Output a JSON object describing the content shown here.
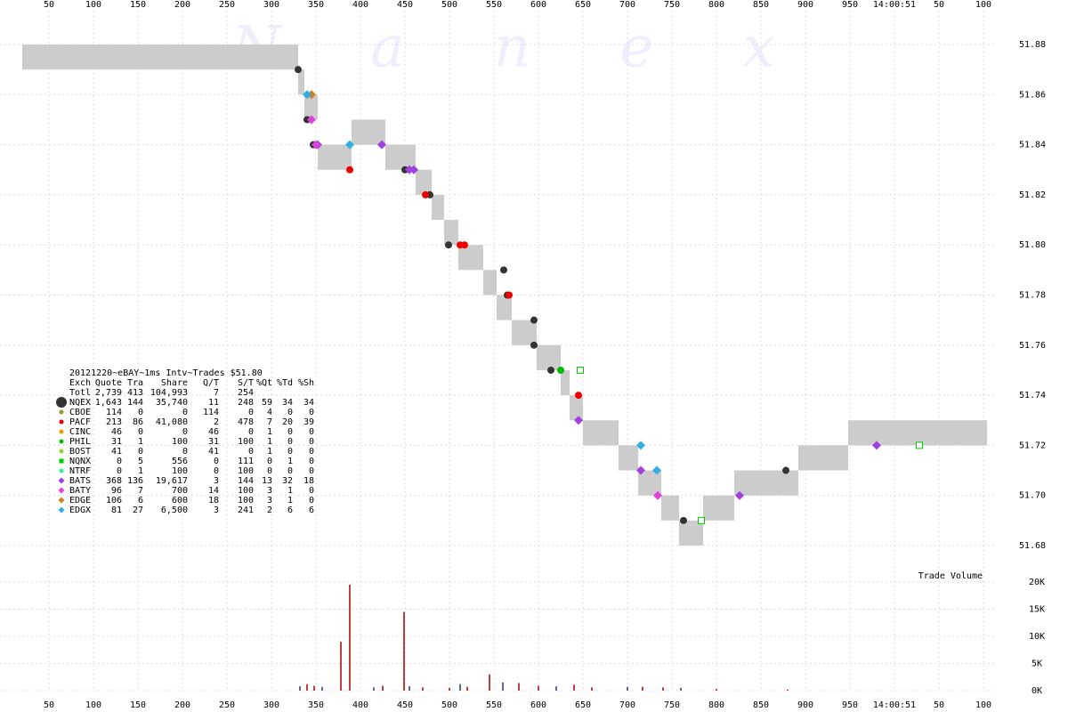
{
  "chart_data": {
    "type": "trades",
    "watermark": "N a n e x",
    "xticks": [
      50,
      100,
      150,
      200,
      250,
      300,
      350,
      400,
      450,
      500,
      550,
      600,
      650,
      700,
      750,
      800,
      850,
      900,
      950,
      {
        "value": 1000,
        "label": "14:00:51"
      },
      {
        "value": 1050,
        "label": "50"
      },
      {
        "value": 1100,
        "label": "100"
      }
    ],
    "xlim": [
      -5,
      1115
    ],
    "ylim": [
      51.68,
      51.88
    ],
    "yticks": [
      51.68,
      {
        "value": 51.7,
        "label": "51.70"
      },
      51.72,
      51.74,
      51.76,
      51.78,
      {
        "value": 51.8,
        "label": "51.80"
      },
      51.82,
      51.84,
      51.86,
      51.88
    ],
    "grid": true,
    "quotes": {
      "color": "#cccccc",
      "edges": [
        20,
        330,
        337,
        352,
        390,
        428,
        462,
        480,
        494,
        510,
        525,
        538,
        553,
        570,
        585,
        598,
        610,
        625,
        635,
        650,
        690,
        700,
        712,
        738,
        758,
        785,
        820,
        892,
        948,
        1104
      ],
      "bid": [
        51.87,
        51.86,
        51.85,
        51.83,
        51.84,
        51.83,
        51.82,
        51.81,
        51.8,
        51.79,
        51.79,
        51.78,
        51.77,
        51.76,
        51.76,
        51.75,
        51.75,
        51.74,
        51.73,
        51.72,
        51.71,
        51.71,
        51.7,
        51.69,
        51.68,
        51.69,
        51.7,
        51.71,
        51.72
      ],
      "ask": [
        51.88,
        51.87,
        51.86,
        51.84,
        51.85,
        51.84,
        51.83,
        51.82,
        51.81,
        51.8,
        51.8,
        51.79,
        51.78,
        51.77,
        51.77,
        51.76,
        51.76,
        51.75,
        51.74,
        51.73,
        51.72,
        51.72,
        51.71,
        51.7,
        51.69,
        51.7,
        51.71,
        51.72,
        51.73
      ]
    },
    "table_title": "20121220~eBAY~1ms Intv~Trades $51.80",
    "columns": [
      "Exch",
      "Quote",
      "Tra",
      "Share",
      "Q/T",
      "S/T",
      "%Qt",
      "%Td",
      "%Sh"
    ],
    "total": [
      "Totl",
      "2,739",
      "413",
      "104,993",
      "7",
      "254"
    ],
    "series": [
      {
        "name": "NQEX",
        "color": "#333333",
        "marker": "circle",
        "stats": [
          "1,643",
          "144",
          "35,740",
          "11",
          "248",
          "59",
          "34",
          "34"
        ],
        "x": [
          330,
          340,
          347,
          450,
          478,
          499,
          561,
          565,
          595,
          595,
          614,
          763,
          878
        ],
        "values": [
          51.87,
          51.85,
          51.84,
          51.83,
          51.82,
          51.8,
          51.79,
          51.78,
          51.77,
          51.76,
          51.75,
          51.69,
          51.71
        ]
      },
      {
        "name": "CBOE",
        "color": "#999933",
        "marker": "circle",
        "stats": [
          "114",
          "0",
          "0",
          "114",
          "0",
          "4",
          "0",
          "0"
        ],
        "x": [],
        "values": []
      },
      {
        "name": "PACF",
        "color": "#ee0000",
        "marker": "circle",
        "stats": [
          "213",
          "86",
          "41,080",
          "2",
          "478",
          "7",
          "20",
          "39"
        ],
        "x": [
          388,
          473,
          512,
          517,
          567,
          645
        ],
        "values": [
          51.83,
          51.82,
          51.8,
          51.8,
          51.78,
          51.74
        ]
      },
      {
        "name": "CINC",
        "color": "#ee9900",
        "marker": "circle",
        "stats": [
          "46",
          "0",
          "0",
          "46",
          "0",
          "1",
          "0",
          "0"
        ],
        "x": [],
        "values": []
      },
      {
        "name": "PHIL",
        "color": "#00bb00",
        "marker": "circle",
        "stats": [
          "31",
          "1",
          "100",
          "31",
          "100",
          "1",
          "0",
          "0"
        ],
        "x": [
          625
        ],
        "values": [
          51.75
        ]
      },
      {
        "name": "BOST",
        "color": "#99cc33",
        "marker": "circle",
        "stats": [
          "41",
          "0",
          "0",
          "41",
          "0",
          "1",
          "0",
          "0"
        ],
        "x": [],
        "values": []
      },
      {
        "name": "NQNX",
        "color": "#00cc00",
        "marker": "square",
        "stats": [
          "0",
          "5",
          "556",
          "0",
          "111",
          "0",
          "1",
          "0"
        ],
        "x": [
          647,
          783,
          1028
        ],
        "values": [
          51.75,
          51.69,
          51.72
        ]
      },
      {
        "name": "NTRF",
        "color": "#33ee99",
        "marker": "circle",
        "stats": [
          "0",
          "1",
          "100",
          "0",
          "100",
          "0",
          "0",
          "0"
        ],
        "x": [],
        "values": []
      },
      {
        "name": "BATS",
        "color": "#a040e0",
        "marker": "diamond",
        "stats": [
          "368",
          "136",
          "19,617",
          "3",
          "144",
          "13",
          "32",
          "18"
        ],
        "x": [
          352,
          424,
          455,
          460,
          645,
          715,
          826,
          980
        ],
        "values": [
          51.84,
          51.84,
          51.83,
          51.83,
          51.73,
          51.71,
          51.7,
          51.72
        ]
      },
      {
        "name": "BATY",
        "color": "#e040e0",
        "marker": "diamond",
        "stats": [
          "96",
          "7",
          "700",
          "14",
          "100",
          "3",
          "1",
          "0"
        ],
        "x": [
          345,
          350,
          734
        ],
        "values": [
          51.85,
          51.84,
          51.7
        ]
      },
      {
        "name": "EDGE",
        "color": "#d08020",
        "marker": "diamond",
        "stats": [
          "106",
          "6",
          "600",
          "18",
          "100",
          "3",
          "1",
          "0"
        ],
        "x": [
          345
        ],
        "values": [
          51.86
        ]
      },
      {
        "name": "EDGX",
        "color": "#30b0e0",
        "marker": "diamond",
        "stats": [
          "81",
          "27",
          "6,500",
          "3",
          "241",
          "2",
          "6",
          "6"
        ],
        "x": [
          340,
          388,
          715,
          733
        ],
        "values": [
          51.86,
          51.84,
          51.72,
          51.71
        ]
      }
    ],
    "volume": {
      "label": "Trade Volume",
      "color": "#aa0000",
      "x": [
        332,
        340,
        348,
        357,
        378,
        388,
        415,
        425,
        449,
        455,
        470,
        500,
        512,
        520,
        545,
        560,
        578,
        600,
        620,
        640,
        660,
        700,
        717,
        740,
        760,
        800,
        880
      ],
      "values": [
        800,
        1200,
        900,
        700,
        9000,
        19500,
        600,
        900,
        14500,
        800,
        600,
        500,
        1200,
        700,
        3000,
        1500,
        1400,
        900,
        800,
        1100,
        600,
        700,
        700,
        600,
        500,
        300,
        200
      ],
      "ylim": [
        0,
        20000
      ],
      "yticks": [
        {
          "value": 0,
          "label": "0K"
        },
        {
          "value": 5000,
          "label": "5K"
        },
        {
          "value": 10000,
          "label": "10K"
        },
        {
          "value": 15000,
          "label": "15K"
        },
        {
          "value": 20000,
          "label": "20K"
        }
      ]
    }
  }
}
